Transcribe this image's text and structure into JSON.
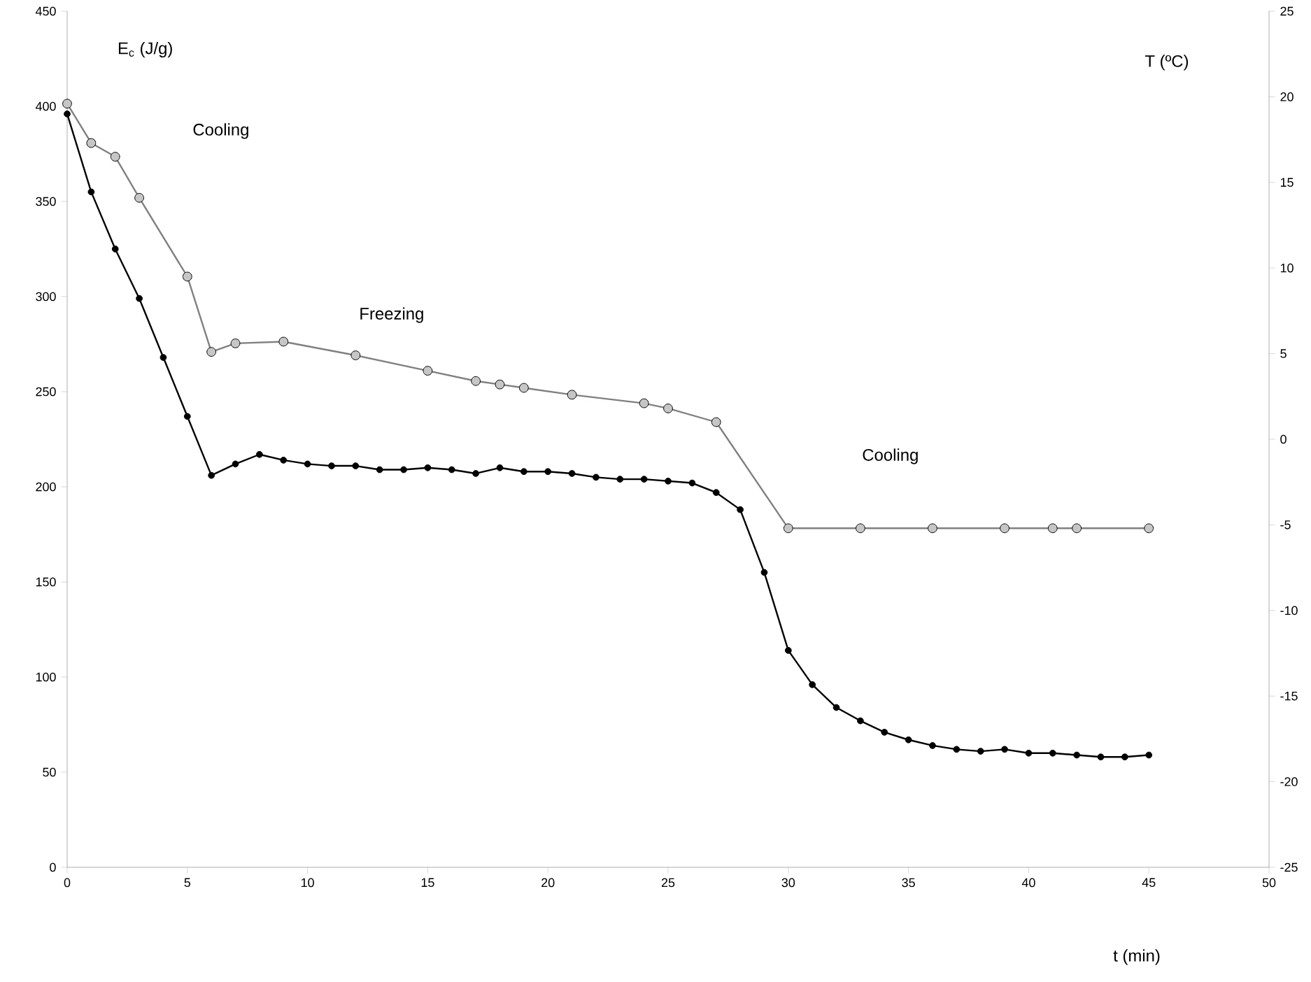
{
  "chart_data": {
    "type": "line",
    "xlabel": "t (min)",
    "ylabel": "E$_{c}$ (J/g)",
    "y2label": "T (ºC)",
    "xlim": [
      0,
      50
    ],
    "xticks": [
      0,
      5,
      10,
      15,
      20,
      25,
      30,
      35,
      40,
      45,
      50
    ],
    "ylim": [
      0,
      450
    ],
    "yticks": [
      0,
      50,
      100,
      150,
      200,
      250,
      300,
      350,
      400,
      450
    ],
    "y2lim": [
      -25,
      25
    ],
    "y2ticks": [
      -25,
      -20,
      -15,
      -10,
      -5,
      0,
      5,
      10,
      15,
      20,
      25
    ],
    "grid": false,
    "marker": "circle",
    "line_style": "solid",
    "series": [
      {
        "color": "#000000",
        "axis": "y",
        "x": [
          0,
          1,
          2,
          3,
          4,
          5,
          6,
          7,
          8,
          9,
          10,
          11,
          12,
          13,
          14,
          15,
          16,
          17,
          18,
          19,
          20,
          21,
          22,
          23,
          24,
          25,
          26,
          27,
          28,
          29,
          30,
          31,
          32,
          33,
          34,
          35,
          36,
          37,
          38,
          39,
          40,
          41,
          42,
          43,
          44,
          45
        ],
        "values": [
          396,
          355,
          325,
          299,
          268,
          237,
          206,
          212,
          217,
          214,
          212,
          211,
          211,
          209,
          209,
          210,
          209,
          207,
          210,
          208,
          208,
          207,
          205,
          204,
          204,
          203,
          202,
          197,
          188,
          155,
          114,
          96,
          84,
          77,
          71,
          67,
          64,
          62,
          61,
          62,
          60,
          60,
          59,
          58,
          58,
          59
        ]
      },
      {
        "color": "#808080",
        "axis": "y2",
        "x": [
          0,
          1,
          2,
          3,
          5,
          6,
          7,
          9,
          12,
          15,
          17,
          18,
          19,
          21,
          24,
          25,
          27,
          30,
          33,
          36,
          39,
          41,
          42,
          45
        ],
        "values": [
          19.6,
          17.3,
          16.5,
          14.1,
          9.5,
          5.1,
          5.6,
          5.7,
          4.9,
          4.0,
          3.4,
          3.2,
          3.0,
          2.6,
          2.1,
          1.8,
          1.0,
          -5.2,
          -5.2,
          -5.2,
          -5.2,
          -5.2,
          -5.2,
          -5.2
        ]
      }
    ],
    "annotations": [
      "Cooling",
      "Freezing",
      "Cooling"
    ]
  }
}
